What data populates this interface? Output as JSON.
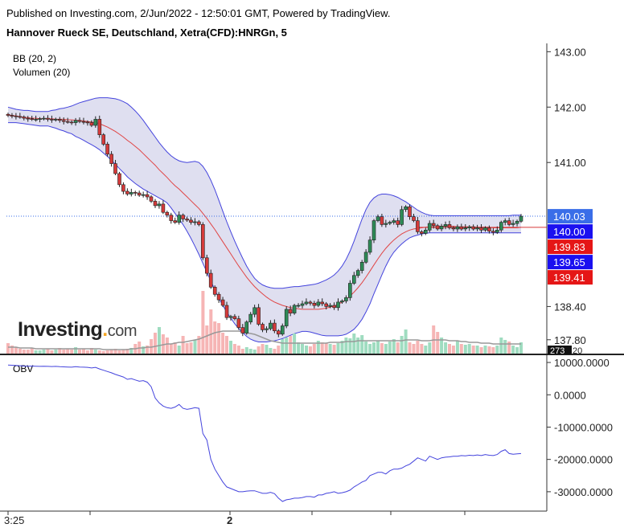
{
  "header": {
    "published": "Published on Investing.com, 2/Jun/2022 - 12:50:01 GMT, Powered by TradingView.",
    "instrument": "Hannover Rueck SE, Deutschland, Xetra(CFD):HNRGn, 5"
  },
  "indicators": {
    "bb": "BB (20, 2)",
    "volume": "Volumen (20)",
    "obv": "OBV"
  },
  "logo": {
    "main": "Investing",
    "suffix": "com"
  },
  "colors": {
    "up": "#2e8b57",
    "down": "#d63a3a",
    "bb_band": "#4444dd",
    "bb_fill": "#dfdff0",
    "bb_mid": "#e04545",
    "volume_up": "#9fdcc0",
    "volume_down": "#f6b5b5",
    "obv": "#4444dd"
  },
  "chart_data": [
    {
      "type": "candlestick",
      "title": "Hannover Rueck SE, Deutschland, Xetra(CFD):HNRGn, 5",
      "y_ticks": [
        "143.00",
        "142.00",
        "141.00",
        "138.40",
        "137.80"
      ],
      "ylim": [
        137.55,
        143.15
      ],
      "x_ticks": [
        "3:25",
        "2"
      ],
      "current_price_line": 140.03,
      "support_line": 139.83,
      "price_badges": [
        {
          "label": "140.03",
          "value": 140.03,
          "color": "#3a6ee8"
        },
        {
          "label": "140.00",
          "value": 140.0,
          "color": "#1a10f0"
        },
        {
          "label": "139.83",
          "value": 139.83,
          "color": "#e51616"
        },
        {
          "label": "139.65",
          "value": 139.65,
          "color": "#1a10f0"
        },
        {
          "label": "139.41",
          "value": 139.41,
          "color": "#e51616"
        }
      ],
      "volume_badge": "273",
      "volume_badge_suffix": "20",
      "close": [
        141.85,
        141.84,
        141.83,
        141.82,
        141.8,
        141.79,
        141.78,
        141.78,
        141.79,
        141.8,
        141.78,
        141.77,
        141.78,
        141.76,
        141.74,
        141.73,
        141.72,
        141.76,
        141.74,
        141.73,
        141.72,
        141.67,
        141.78,
        141.5,
        141.33,
        141.15,
        140.98,
        140.8,
        140.6,
        140.48,
        140.43,
        140.46,
        140.45,
        140.41,
        140.42,
        140.38,
        140.3,
        140.22,
        140.25,
        140.1,
        140.05,
        139.95,
        139.92,
        140.05,
        139.98,
        139.96,
        139.92,
        139.93,
        139.88,
        139.28,
        139.0,
        138.75,
        138.62,
        138.52,
        138.42,
        138.2,
        138.22,
        138.18,
        138.02,
        137.92,
        138.12,
        138.26,
        138.38,
        138.08,
        137.98,
        138.0,
        138.1,
        137.96,
        137.9,
        138.05,
        138.35,
        138.28,
        138.42,
        138.42,
        138.45,
        138.48,
        138.46,
        138.42,
        138.48,
        138.45,
        138.4,
        138.42,
        138.38,
        138.48,
        138.5,
        138.56,
        138.82,
        138.96,
        139.05,
        139.2,
        139.38,
        139.6,
        139.95,
        140.02,
        139.88,
        139.9,
        139.92,
        139.95,
        139.88,
        140.15,
        140.2,
        140.02,
        139.95,
        139.75,
        139.72,
        139.78,
        139.9,
        139.86,
        139.8,
        139.85,
        139.88,
        139.82,
        139.8,
        139.84,
        139.8,
        139.82,
        139.84,
        139.8,
        139.82,
        139.78,
        139.82,
        139.76,
        139.74,
        139.78,
        139.92,
        139.95,
        139.88,
        139.9,
        139.94,
        140.03
      ],
      "volume": [
        0.13,
        0.1,
        0.08,
        0.06,
        0.05,
        0.05,
        0.07,
        0.04,
        0.04,
        0.05,
        0.06,
        0.04,
        0.05,
        0.07,
        0.05,
        0.06,
        0.05,
        0.08,
        0.05,
        0.06,
        0.04,
        0.07,
        0.05,
        0.04,
        0.03,
        0.04,
        0.05,
        0.06,
        0.04,
        0.05,
        0.06,
        0.07,
        0.12,
        0.15,
        0.09,
        0.1,
        0.18,
        0.26,
        0.33,
        0.24,
        0.2,
        0.12,
        0.14,
        0.1,
        0.22,
        0.13,
        0.14,
        0.17,
        0.22,
        0.78,
        0.35,
        0.55,
        0.4,
        0.38,
        0.26,
        0.22,
        0.16,
        0.12,
        0.1,
        0.06,
        0.08,
        0.06,
        0.05,
        0.09,
        0.12,
        0.11,
        0.07,
        0.06,
        0.1,
        0.18,
        0.2,
        0.22,
        0.25,
        0.14,
        0.12,
        0.1,
        0.09,
        0.12,
        0.16,
        0.14,
        0.13,
        0.12,
        0.11,
        0.13,
        0.16,
        0.2,
        0.19,
        0.25,
        0.2,
        0.23,
        0.15,
        0.12,
        0.14,
        0.16,
        0.13,
        0.12,
        0.15,
        0.18,
        0.14,
        0.22,
        0.3,
        0.14,
        0.12,
        0.16,
        0.12,
        0.1,
        0.14,
        0.35,
        0.27,
        0.2,
        0.14,
        0.12,
        0.1,
        0.16,
        0.12,
        0.11,
        0.12,
        0.1,
        0.1,
        0.08,
        0.1,
        0.09,
        0.08,
        0.1,
        0.2,
        0.17,
        0.15,
        0.1,
        0.08,
        0.14
      ],
      "bb_upper": [
        142.0,
        141.98,
        141.96,
        141.95,
        141.94,
        141.94,
        141.93,
        141.92,
        141.92,
        141.92,
        141.92,
        141.94,
        141.95,
        141.97,
        141.98,
        142.0,
        142.02,
        142.05,
        142.08,
        142.1,
        142.12,
        142.14,
        142.16,
        142.17,
        142.17,
        142.17,
        142.16,
        142.15,
        142.13,
        142.1,
        142.06,
        142.0,
        141.93,
        141.85,
        141.76,
        141.66,
        141.56,
        141.46,
        141.36,
        141.27,
        141.19,
        141.12,
        141.07,
        141.03,
        141.01,
        141.0,
        141.01,
        141.02,
        141.0,
        140.93,
        140.82,
        140.68,
        140.51,
        140.32,
        140.12,
        139.93,
        139.75,
        139.58,
        139.42,
        139.27,
        139.13,
        139.01,
        138.91,
        138.84,
        138.79,
        138.76,
        138.74,
        138.73,
        138.73,
        138.73,
        138.74,
        138.75,
        138.76,
        138.76,
        138.77,
        138.78,
        138.79,
        138.8,
        138.82,
        138.85,
        138.88,
        138.92,
        138.97,
        139.04,
        139.13,
        139.25,
        139.4,
        139.58,
        139.78,
        139.98,
        140.15,
        140.28,
        140.36,
        140.41,
        140.43,
        140.43,
        140.42,
        140.4,
        140.37,
        140.33,
        140.29,
        140.24,
        140.19,
        140.14,
        140.1,
        140.07,
        140.05,
        140.04,
        140.04,
        140.04,
        140.04,
        140.04,
        140.04,
        140.04,
        140.04,
        140.04,
        140.04,
        140.04,
        140.04,
        140.04,
        140.04,
        140.04,
        140.04,
        140.04,
        140.04,
        140.04,
        140.04,
        140.05,
        140.05,
        140.05
      ],
      "bb_middle": [
        141.86,
        141.85,
        141.84,
        141.83,
        141.82,
        141.81,
        141.8,
        141.8,
        141.79,
        141.79,
        141.79,
        141.79,
        141.78,
        141.78,
        141.78,
        141.77,
        141.77,
        141.76,
        141.76,
        141.75,
        141.74,
        141.73,
        141.72,
        141.7,
        141.67,
        141.64,
        141.6,
        141.56,
        141.51,
        141.46,
        141.4,
        141.35,
        141.29,
        141.23,
        141.16,
        141.09,
        141.02,
        140.95,
        140.87,
        140.8,
        140.73,
        140.65,
        140.58,
        140.52,
        140.45,
        140.38,
        140.31,
        140.24,
        140.17,
        140.08,
        139.99,
        139.89,
        139.79,
        139.68,
        139.57,
        139.46,
        139.35,
        139.24,
        139.13,
        139.03,
        138.93,
        138.84,
        138.76,
        138.69,
        138.63,
        138.57,
        138.52,
        138.48,
        138.45,
        138.42,
        138.4,
        138.38,
        138.37,
        138.36,
        138.35,
        138.35,
        138.35,
        138.35,
        138.35,
        138.36,
        138.37,
        138.39,
        138.41,
        138.44,
        138.48,
        138.53,
        138.59,
        138.66,
        138.74,
        138.83,
        138.93,
        139.04,
        139.15,
        139.26,
        139.36,
        139.45,
        139.53,
        139.6,
        139.66,
        139.71,
        139.75,
        139.78,
        139.8,
        139.81,
        139.82,
        139.83,
        139.84,
        139.84,
        139.84,
        139.85,
        139.85,
        139.85,
        139.85,
        139.84,
        139.84,
        139.84,
        139.84,
        139.84,
        139.83,
        139.83,
        139.83,
        139.83,
        139.82,
        139.82,
        139.82,
        139.82,
        139.82,
        139.82,
        139.82,
        139.83
      ],
      "bb_lower": [
        141.72,
        141.72,
        141.72,
        141.71,
        141.7,
        141.69,
        141.68,
        141.67,
        141.66,
        141.66,
        141.66,
        141.64,
        141.62,
        141.59,
        141.57,
        141.54,
        141.52,
        141.47,
        141.44,
        141.4,
        141.36,
        141.32,
        141.28,
        141.23,
        141.17,
        141.11,
        141.04,
        140.97,
        140.89,
        140.82,
        140.74,
        140.68,
        140.62,
        140.57,
        140.52,
        140.48,
        140.44,
        140.4,
        140.36,
        140.32,
        140.27,
        140.18,
        140.08,
        139.98,
        139.88,
        139.76,
        139.63,
        139.49,
        139.34,
        139.18,
        139.02,
        138.86,
        138.7,
        138.55,
        138.42,
        138.3,
        138.19,
        138.09,
        138.0,
        137.93,
        137.86,
        137.81,
        137.78,
        137.76,
        137.76,
        137.76,
        137.77,
        137.78,
        137.8,
        137.82,
        137.85,
        137.88,
        137.91,
        137.93,
        137.95,
        137.95,
        137.94,
        137.92,
        137.9,
        137.88,
        137.87,
        137.87,
        137.87,
        137.87,
        137.88,
        137.9,
        137.94,
        137.99,
        138.07,
        138.17,
        138.3,
        138.45,
        138.63,
        138.8,
        138.97,
        139.13,
        139.27,
        139.38,
        139.46,
        139.53,
        139.59,
        139.64,
        139.67,
        139.69,
        139.71,
        139.72,
        139.73,
        139.73,
        139.73,
        139.73,
        139.73,
        139.73,
        139.73,
        139.73,
        139.73,
        139.73,
        139.73,
        139.73,
        139.73,
        139.73,
        139.73,
        139.73,
        139.73,
        139.73,
        139.73,
        139.73,
        139.73,
        139.73,
        139.73,
        139.73
      ],
      "volume_ma": [
        0.08,
        0.08,
        0.08,
        0.07,
        0.07,
        0.07,
        0.07,
        0.06,
        0.06,
        0.06,
        0.06,
        0.06,
        0.06,
        0.06,
        0.06,
        0.06,
        0.06,
        0.06,
        0.06,
        0.06,
        0.06,
        0.06,
        0.06,
        0.06,
        0.05,
        0.05,
        0.05,
        0.05,
        0.05,
        0.05,
        0.05,
        0.06,
        0.06,
        0.07,
        0.07,
        0.08,
        0.08,
        0.09,
        0.1,
        0.11,
        0.12,
        0.12,
        0.13,
        0.14,
        0.14,
        0.15,
        0.16,
        0.17,
        0.18,
        0.2,
        0.22,
        0.24,
        0.26,
        0.27,
        0.28,
        0.28,
        0.28,
        0.28,
        0.28,
        0.27,
        0.26,
        0.25,
        0.24,
        0.22,
        0.2,
        0.18,
        0.16,
        0.15,
        0.14,
        0.13,
        0.13,
        0.13,
        0.13,
        0.13,
        0.13,
        0.13,
        0.13,
        0.13,
        0.13,
        0.13,
        0.13,
        0.14,
        0.14,
        0.14,
        0.14,
        0.15,
        0.15,
        0.15,
        0.16,
        0.16,
        0.16,
        0.16,
        0.16,
        0.16,
        0.16,
        0.16,
        0.16,
        0.16,
        0.16,
        0.16,
        0.17,
        0.17,
        0.17,
        0.17,
        0.16,
        0.16,
        0.16,
        0.17,
        0.17,
        0.17,
        0.17,
        0.16,
        0.16,
        0.16,
        0.15,
        0.15,
        0.14,
        0.14,
        0.14,
        0.13,
        0.13,
        0.13,
        0.12,
        0.12,
        0.12,
        0.12,
        0.12,
        0.12,
        0.12,
        0.12
      ]
    },
    {
      "type": "line",
      "title": "OBV",
      "y_ticks": [
        "10000.0000",
        "0.0000",
        "-10000.0000",
        "-20000.0000",
        "-30000.0000"
      ],
      "ylim": [
        -35000,
        12000
      ],
      "values": [
        9200,
        9150,
        9100,
        9000,
        8900,
        8850,
        8900,
        8850,
        8800,
        8850,
        8800,
        8750,
        8800,
        8700,
        8650,
        8600,
        8550,
        8700,
        8600,
        8550,
        8500,
        8300,
        8500,
        8000,
        7600,
        7200,
        6800,
        6300,
        5900,
        5500,
        4800,
        5000,
        4600,
        4200,
        4400,
        3900,
        2500,
        -1000,
        -2500,
        -3500,
        -4000,
        -4200,
        -3800,
        -3000,
        -4200,
        -4500,
        -4300,
        -4000,
        -4200,
        -12000,
        -14000,
        -20000,
        -23000,
        -25000,
        -27000,
        -28500,
        -29000,
        -29500,
        -30000,
        -30000,
        -29800,
        -29700,
        -29700,
        -30100,
        -30500,
        -30500,
        -30200,
        -30600,
        -32000,
        -33000,
        -32500,
        -32300,
        -32000,
        -32000,
        -31800,
        -31500,
        -31500,
        -31700,
        -31000,
        -31000,
        -30500,
        -30300,
        -30000,
        -30500,
        -30300,
        -30000,
        -29500,
        -28500,
        -27800,
        -27000,
        -26500,
        -25000,
        -24500,
        -24000,
        -24000,
        -24500,
        -23500,
        -23000,
        -23000,
        -22700,
        -22000,
        -21500,
        -20500,
        -19500,
        -20000,
        -20500,
        -19000,
        -19500,
        -20000,
        -19500,
        -19300,
        -19200,
        -19000,
        -19000,
        -18800,
        -18900,
        -18700,
        -18800,
        -18600,
        -18800,
        -18500,
        -18700,
        -18800,
        -18500,
        -17500,
        -17000,
        -18200,
        -18400,
        -18300,
        -18200
      ]
    }
  ]
}
